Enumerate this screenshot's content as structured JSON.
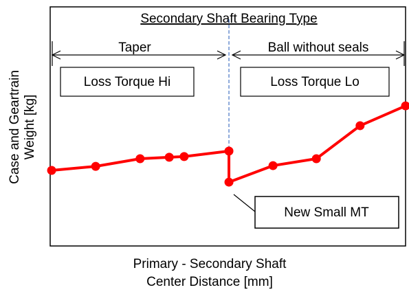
{
  "chart_data": {
    "type": "line",
    "title": "Secondary Shaft Bearing Type",
    "region_labels": [
      "Taper",
      "Ball without seals"
    ],
    "box_labels": [
      "Loss Torque Hi",
      "Loss Torque Lo"
    ],
    "annotation": "New Small MT",
    "x_label": [
      "Primary - Secondary Shaft",
      "Center Distance [mm]"
    ],
    "y_label": [
      "Case and Geartrain",
      "Weight [kg]"
    ],
    "x": [
      0.4,
      12.8,
      25.3,
      33.5,
      37.7,
      50.3,
      50.3,
      62.7,
      74.9,
      87.2,
      100
    ],
    "values": [
      31.6,
      33.3,
      36.5,
      37.1,
      37.4,
      39.7,
      26.7,
      33.6,
      36.5,
      50.3,
      58.6
    ],
    "color": "#ff0000",
    "xlim": [
      0,
      100
    ],
    "ylim": [
      0,
      100
    ]
  }
}
